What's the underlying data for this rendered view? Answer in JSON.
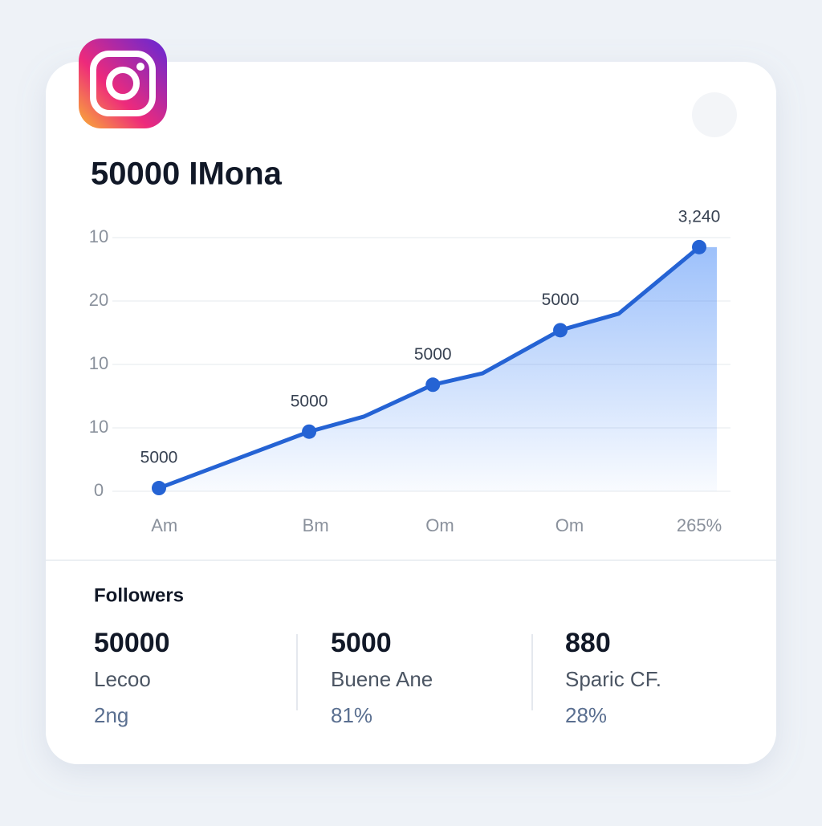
{
  "app": {
    "title": "50000 IMona"
  },
  "chart_data": {
    "type": "line",
    "x": [
      0,
      27.8,
      38.0,
      50.7,
      59.9,
      74.3,
      85.1,
      100
    ],
    "values": [
      0.5,
      9.4,
      11.8,
      16.8,
      18.6,
      25.4,
      28.0,
      38.5
    ],
    "point_labels": [
      "5000",
      "5000",
      null,
      "5000",
      null,
      "5000",
      null,
      "3,240"
    ],
    "color": "#2563d4",
    "xlim": [
      0,
      100
    ],
    "xticks": [
      {
        "value": 1,
        "label": "Am"
      },
      {
        "value": 29,
        "label": "Bm"
      },
      {
        "value": 52,
        "label": "Om"
      },
      {
        "value": 76,
        "label": "Om"
      },
      {
        "value": 100,
        "label": "265%"
      }
    ],
    "ylim": [
      0,
      40
    ],
    "yticks": [
      0,
      10,
      {
        "value": 20,
        "label": "10"
      },
      {
        "value": 30,
        "label": "20"
      },
      {
        "value": 40,
        "label": "10"
      }
    ],
    "grid": true
  },
  "stats": {
    "heading": "Followers",
    "items": [
      {
        "value": "50000",
        "label": "Lecoo",
        "change": "2ng"
      },
      {
        "value": "5000",
        "label": "Buene Ane",
        "change": "81%"
      },
      {
        "value": "880",
        "label": "Sparic CF.",
        "change": "28%"
      }
    ]
  }
}
